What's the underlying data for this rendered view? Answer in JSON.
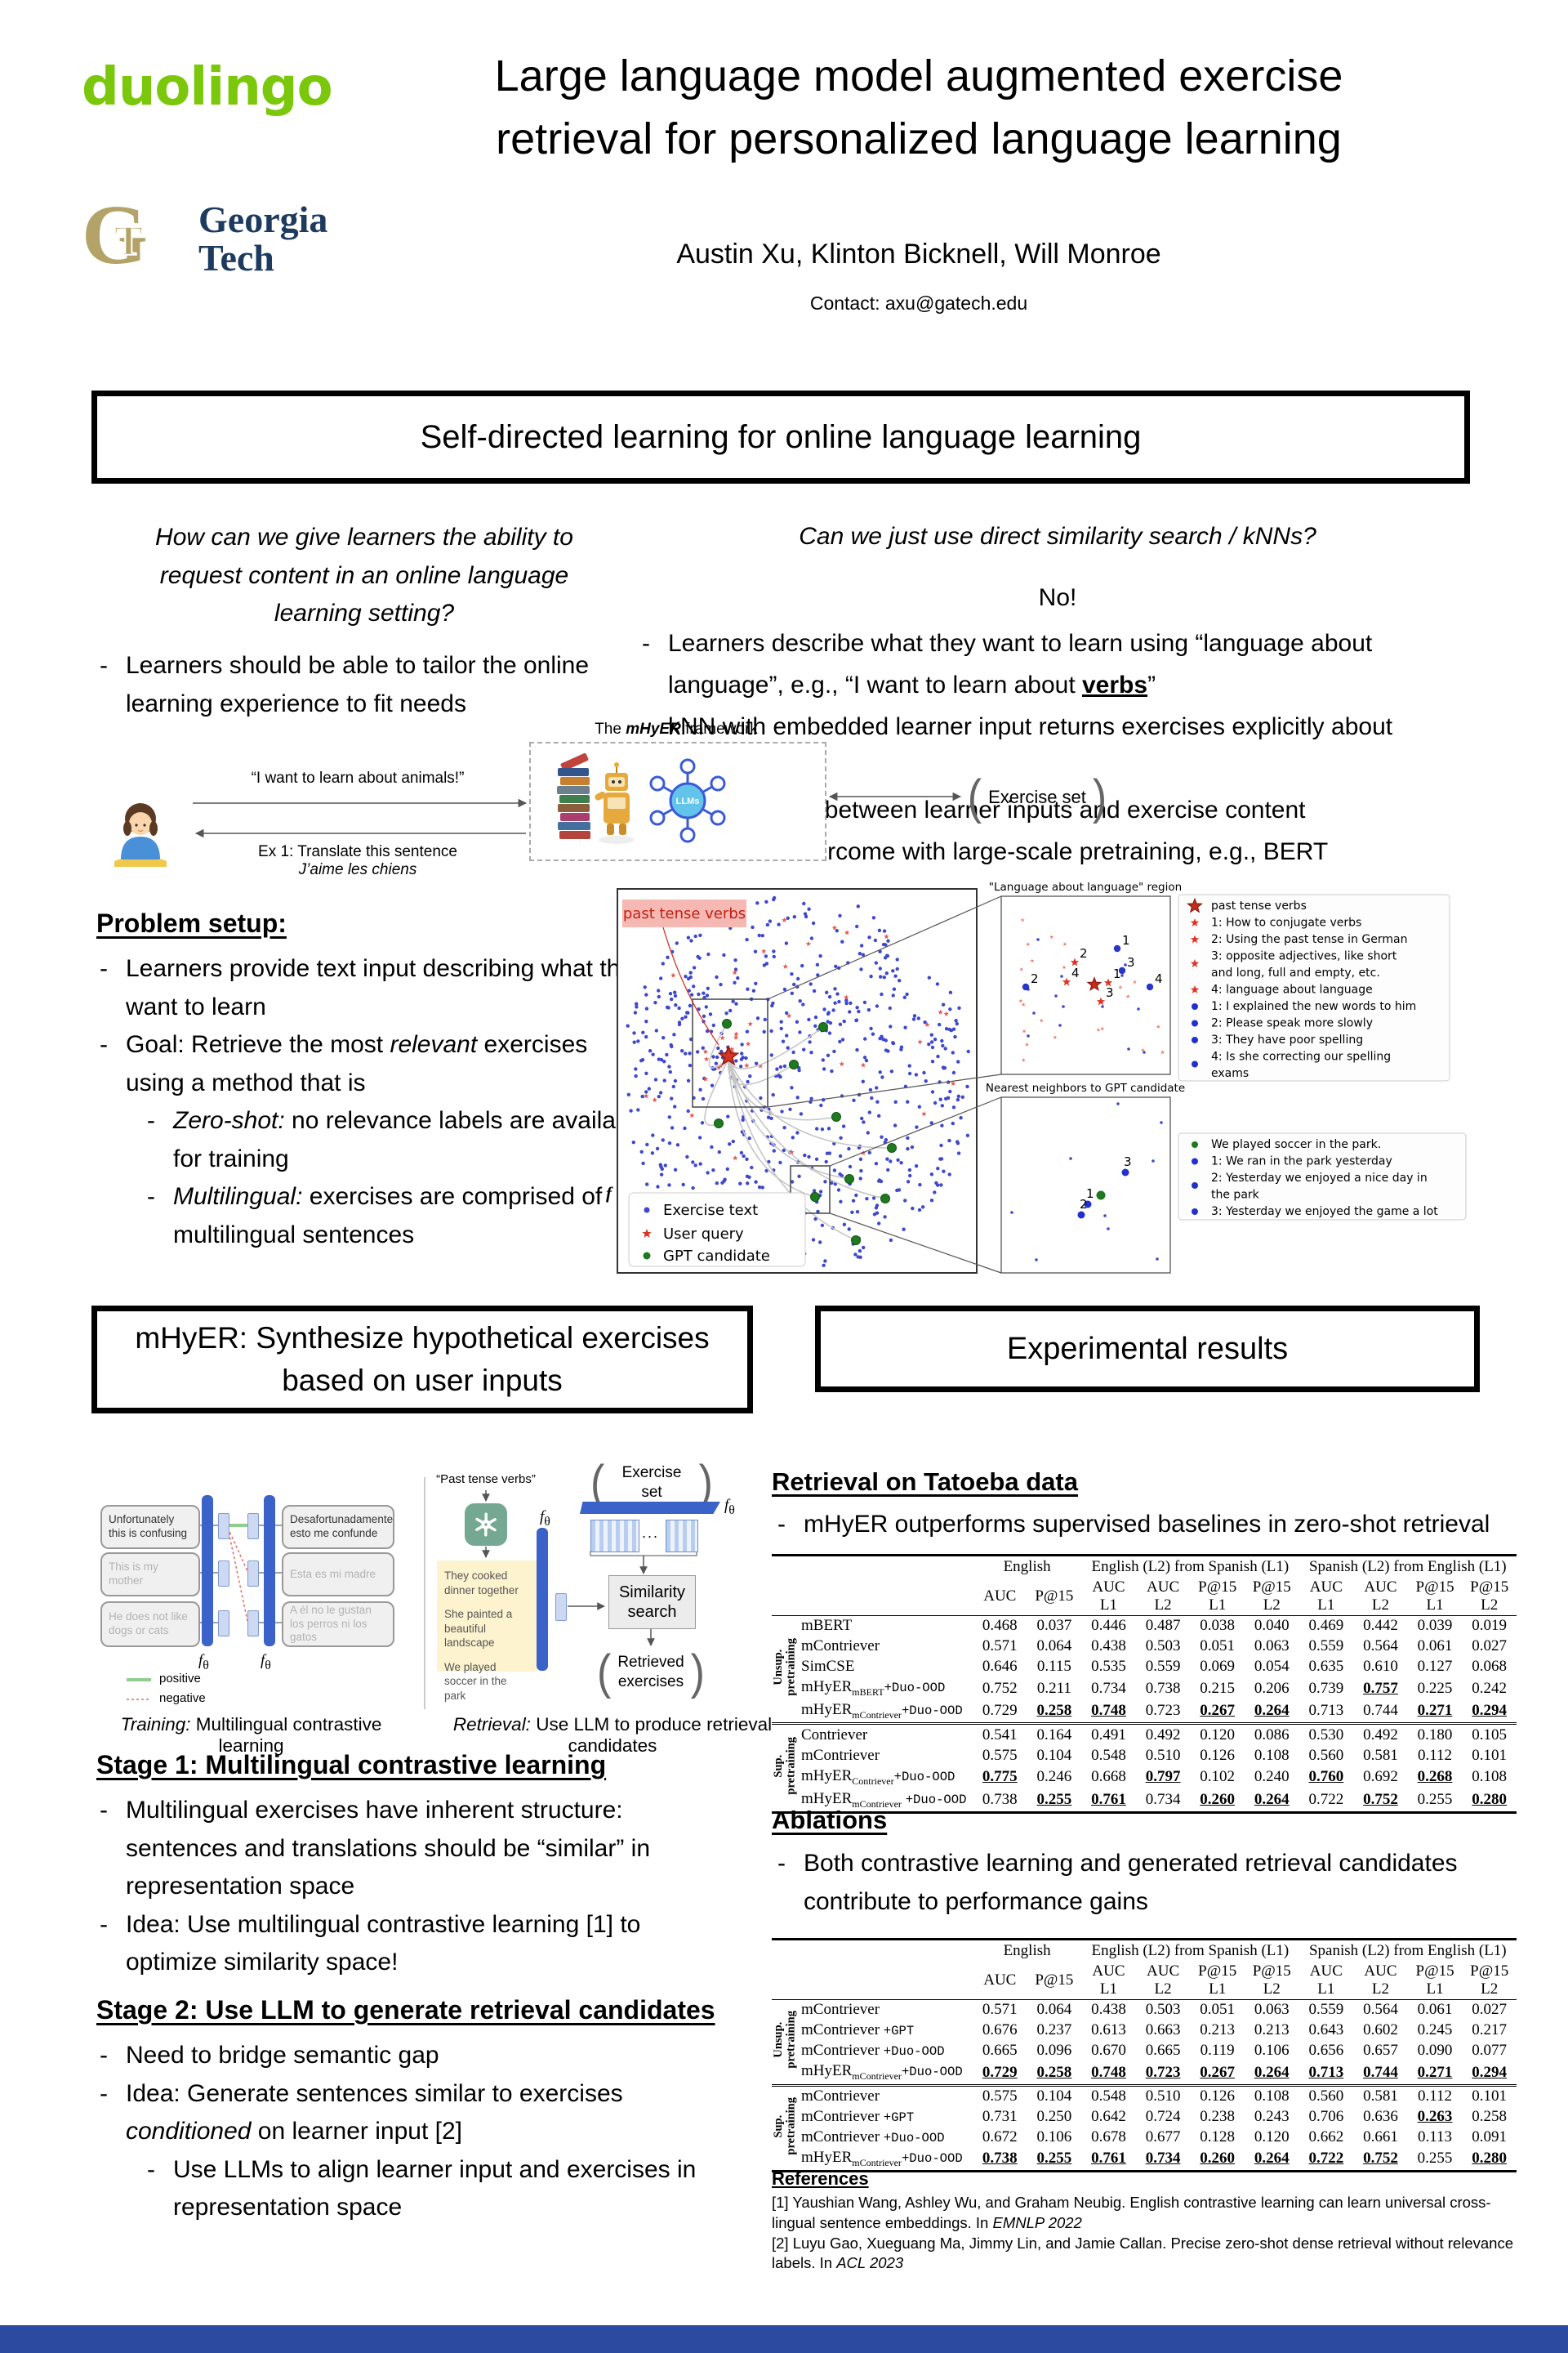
{
  "header": {
    "duolingo": "duolingo",
    "gt_g": "G",
    "gt_t": "T",
    "gt_line1": "Georgia",
    "gt_line2": "Tech",
    "title_line1": "Large language model augmented exercise",
    "title_line2": "retrieval for personalized language learning",
    "authors": "Austin Xu, Klinton Bicknell, Will Monroe",
    "contact": "Contact: axu@gatech.edu"
  },
  "section1": {
    "title": "Self-directed learning for online language learning",
    "left_question": "How can we give learners the ability to\nrequest content in an online language\nlearning setting?",
    "left_bullet": "Learners should be able to tailor the online learning experience to fit needs",
    "right_question": "Can we just use direct similarity search / kNNs?",
    "no_text": "No!",
    "right_bullets": [
      "Learners describe what they want to learn using “language about language”, e.g., “I want to learn about **verbs**”",
      "kNN with embedded learner input returns exercises explicitly about language!",
      "Semantic gap between learner inputs and exercise content",
      "Cannot be overcome with large-scale pretraining, e.g., BERT"
    ],
    "figure": {
      "speech_request": "“I want to learn about animals!”",
      "framework_pre": "The ",
      "framework_name": "mHyER",
      "framework_post": " framework",
      "llms_label": "LLMs",
      "exercise_set": "Exercise set",
      "reply_line1": "Ex 1: Translate this sentence",
      "reply_line2": "J’aime les chiens"
    }
  },
  "problem_setup": {
    "heading": "Problem setup:",
    "bullets": [
      "Learners provide text input describing what they want to learn",
      "Goal: Retrieve the most *relevant* exercises using a method that is",
      "*Zero-shot:* no relevance labels are available for training",
      "*Multilingual:* exercises are comprised of multilingual sentences"
    ]
  },
  "scatter": {
    "annotation": "past tense verbs",
    "stray_f": "f",
    "main_legend": [
      "Exercise text",
      "User query",
      "GPT candidate"
    ],
    "inset1_title": "\"Language about language\" region",
    "inset2_title": "Nearest neighbors to GPT candidate",
    "inset1_star_labels": [
      "1",
      "2",
      "3",
      "4"
    ],
    "inset1_dot_labels": [
      "1",
      "2",
      "3",
      "4"
    ],
    "inset2_dot_labels": [
      "1",
      "2",
      "3"
    ],
    "legend1": [
      {
        "marker": "star-big",
        "text": "past tense verbs"
      },
      {
        "marker": "star",
        "text": "1: How to conjugate verbs"
      },
      {
        "marker": "star",
        "text": "2: Using the past tense in German"
      },
      {
        "marker": "star",
        "text": "3: opposite adjectives, like short\nand long, full and empty, etc."
      },
      {
        "marker": "star",
        "text": "4: language about language"
      },
      {
        "marker": "dot",
        "text": "1: I explained the new words to him"
      },
      {
        "marker": "dot",
        "text": "2: Please speak more slowly"
      },
      {
        "marker": "dot",
        "text": "3: They have poor spelling"
      },
      {
        "marker": "dot",
        "text": "4: Is she correcting our spelling\nexams"
      }
    ],
    "legend2": [
      {
        "marker": "gdot",
        "text": "We played soccer in the park."
      },
      {
        "marker": "dot",
        "text": "1: We ran in the park yesterday"
      },
      {
        "marker": "dot",
        "text": "2: Yesterday we enjoyed a nice day in\nthe park"
      },
      {
        "marker": "dot",
        "text": "3: Yesterday we enjoyed the game a lot"
      }
    ]
  },
  "chart_data": {
    "type": "scatter",
    "title": "Embedding space of exercises, user queries and GPT candidates (t-SNE style cloud)",
    "series": [
      {
        "name": "Exercise text",
        "marker": "dot",
        "color": "#3f48cc",
        "approx_count": 650
      },
      {
        "name": "User query",
        "marker": "star",
        "color": "#d63324",
        "approx_count": 45
      },
      {
        "name": "GPT candidate",
        "marker": "large-dot",
        "color": "#1e7a1e",
        "approx_count": 10
      }
    ],
    "annotations": [
      "past tense verbs",
      "\"Language about language\" region",
      "Nearest neighbors to GPT candidate"
    ],
    "layout": {
      "grid": false,
      "axes": "hidden",
      "insets": 2,
      "legend_position": "bottom-left"
    }
  },
  "mhyer_box": {
    "title_line1": "mHyER: Synthesize hypothetical exercises",
    "title_line2": "based on user inputs"
  },
  "exp_box": {
    "title": "Experimental results"
  },
  "diagram": {
    "training": {
      "en_sentences": [
        "Unfortunately this is confusing",
        "This is my mother",
        "He does not like dogs or cats"
      ],
      "es_sentences": [
        "Desafortunadamente esto me confunde",
        "Esta es mi madre",
        "A él no le gustan los perros ni los gatos"
      ],
      "f_theta": "*f*~θ~",
      "legend_positive": "positive",
      "legend_negative": "negative",
      "caption": "*Training:* Multilingual contrastive learning"
    },
    "retrieval": {
      "query": "“Past tense verbs”",
      "gpt_sentences": [
        "They cooked dinner together",
        "She painted a beautiful landscape",
        "We played soccer in the park"
      ],
      "f_theta": "*f*~θ~",
      "exercise_set": "Exercise set",
      "dots": "...",
      "similarity": "Similarity\nsearch",
      "retrieved": "Retrieved\nexercises",
      "caption": "*Retrieval:* Use LLM to produce retrieval candidates"
    }
  },
  "stage1": {
    "heading": "Stage 1: Multilingual contrastive learning",
    "bullets": [
      "Multilingual exercises have inherent structure: sentences and translations should be “similar” in representation space",
      "Idea: Use multilingual contrastive learning [1] to optimize similarity space!"
    ]
  },
  "stage2": {
    "heading": "Stage 2: Use LLM to generate retrieval candidates",
    "bullets": [
      "Need to bridge semantic gap",
      "Idea: Generate sentences similar to exercises *conditioned* on learner input [2]",
      "Use LLMs to align learner input and exercises in representation space"
    ]
  },
  "results": {
    "heading": "Retrieval on Tatoeba data",
    "bullet": "mHyER outperforms supervised baselines in zero-shot retrieval"
  },
  "ablations": {
    "heading": "Ablations",
    "bullet": "Both contrastive learning and generated retrieval candidates contribute to performance gains"
  },
  "results_table": {
    "col_groups": [
      {
        "label": "English",
        "span": 2
      },
      {
        "label": "English (L2) from Spanish (L1)",
        "span": 4
      },
      {
        "label": "Spanish (L2) from English (L1)",
        "span": 4
      }
    ],
    "col_headers": [
      "AUC",
      "P@15",
      "AUC\nL1",
      "AUC\nL2",
      "P@15\nL1",
      "P@15\nL2",
      "AUC\nL1",
      "AUC\nL2",
      "P@15\nL1",
      "P@15\nL2"
    ],
    "groups": [
      {
        "label": "Unsup.\npretraining",
        "rows": [
          {
            "label": "mBERT",
            "cells": [
              "0.468",
              "0.037",
              "0.446",
              "0.487",
              "0.038",
              "0.040",
              "0.469",
              "0.442",
              "0.039",
              "0.019"
            ]
          },
          {
            "label": "mContriever",
            "cells": [
              "0.571",
              "0.064",
              "0.438",
              "0.503",
              "0.051",
              "0.063",
              "0.559",
              "0.564",
              "0.061",
              "0.027"
            ]
          },
          {
            "label": "SimCSE",
            "cells": [
              "0.646",
              "0.115",
              "0.535",
              "0.559",
              "0.069",
              "0.054",
              "0.635",
              "0.610",
              "0.127",
              "0.068"
            ]
          },
          {
            "label": "mHyER~mBERT~`+Duo-OOD`",
            "cells": [
              "0.752",
              "0.211",
              "0.734",
              "0.738",
              "0.215",
              "0.206",
              "0.739",
              "**0.757**",
              "0.225",
              "0.242"
            ]
          },
          {
            "label": "mHyER~mContriever~`+Duo-OOD`",
            "cells": [
              "0.729",
              "**0.258**",
              "**0.748**",
              "0.723",
              "**0.267**",
              "**0.264**",
              "0.713",
              "0.744",
              "**0.271**",
              "**0.294**"
            ]
          }
        ]
      },
      {
        "label": "Sup.\npretraining",
        "rows": [
          {
            "label": "Contriever",
            "cells": [
              "0.541",
              "0.164",
              "0.491",
              "0.492",
              "0.120",
              "0.086",
              "0.530",
              "0.492",
              "0.180",
              "0.105"
            ]
          },
          {
            "label": "mContriever",
            "cells": [
              "0.575",
              "0.104",
              "0.548",
              "0.510",
              "0.126",
              "0.108",
              "0.560",
              "0.581",
              "0.112",
              "0.101"
            ]
          },
          {
            "label": "mHyER~Contriever~`+Duo-OOD`",
            "cells": [
              "**0.775**",
              "0.246",
              "0.668",
              "**0.797**",
              "0.102",
              "0.240",
              "**0.760**",
              "0.692",
              "**0.268**",
              "0.108"
            ]
          },
          {
            "label": "mHyER~mContriever~ `+Duo-OOD`",
            "cells": [
              "0.738",
              "**0.255**",
              "**0.761**",
              "0.734",
              "**0.260**",
              "**0.264**",
              "0.722",
              "**0.752**",
              "0.255",
              "**0.280**"
            ]
          }
        ]
      }
    ]
  },
  "ablations_table": {
    "col_groups": [
      {
        "label": "English",
        "span": 2
      },
      {
        "label": "English (L2) from Spanish (L1)",
        "span": 4
      },
      {
        "label": "Spanish (L2) from English (L1)",
        "span": 4
      }
    ],
    "col_headers": [
      "AUC",
      "P@15",
      "AUC\nL1",
      "AUC\nL2",
      "P@15\nL1",
      "P@15\nL2",
      "AUC\nL1",
      "AUC\nL2",
      "P@15\nL1",
      "P@15\nL2"
    ],
    "groups": [
      {
        "label": "Unsup.\npretraining",
        "rows": [
          {
            "label": "mContriever",
            "cells": [
              "0.571",
              "0.064",
              "0.438",
              "0.503",
              "0.051",
              "0.063",
              "0.559",
              "0.564",
              "0.061",
              "0.027"
            ]
          },
          {
            "label": "mContriever `+GPT`",
            "cells": [
              "0.676",
              "0.237",
              "0.613",
              "0.663",
              "0.213",
              "0.213",
              "0.643",
              "0.602",
              "0.245",
              "0.217"
            ]
          },
          {
            "label": "mContriever `+Duo-OOD`",
            "cells": [
              "0.665",
              "0.096",
              "0.670",
              "0.665",
              "0.119",
              "0.106",
              "0.656",
              "0.657",
              "0.090",
              "0.077"
            ]
          },
          {
            "label": "mHyER~mContriever~`+Duo-OOD`",
            "cells": [
              "**0.729**",
              "**0.258**",
              "**0.748**",
              "**0.723**",
              "**0.267**",
              "**0.264**",
              "**0.713**",
              "**0.744**",
              "**0.271**",
              "**0.294**"
            ]
          }
        ]
      },
      {
        "label": "Sup.\npretraining",
        "rows": [
          {
            "label": "mContriever",
            "cells": [
              "0.575",
              "0.104",
              "0.548",
              "0.510",
              "0.126",
              "0.108",
              "0.560",
              "0.581",
              "0.112",
              "0.101"
            ]
          },
          {
            "label": "mContriever `+GPT`",
            "cells": [
              "0.731",
              "0.250",
              "0.642",
              "0.724",
              "0.238",
              "0.243",
              "0.706",
              "0.636",
              "**0.263**",
              "0.258"
            ]
          },
          {
            "label": "mContriever `+Duo-OOD`",
            "cells": [
              "0.672",
              "0.106",
              "0.678",
              "0.677",
              "0.128",
              "0.120",
              "0.662",
              "0.661",
              "0.113",
              "0.091"
            ]
          },
          {
            "label": "mHyER~mContriever~`+Duo-OOD`",
            "cells": [
              "**0.738**",
              "**0.255**",
              "**0.761**",
              "**0.734**",
              "**0.260**",
              "**0.264**",
              "**0.722**",
              "**0.752**",
              "0.255",
              "**0.280**"
            ]
          }
        ]
      }
    ]
  },
  "references": {
    "heading": "References",
    "items": [
      "[1] Yaushian Wang, Ashley Wu, and Graham Neubig. English contrastive learning can learn universal cross-lingual sentence embeddings. In *EMNLP 2022*",
      "[2] Luyu Gao, Xueguang Ma, Jimmy Lin, and Jamie Callan. Precise zero-shot dense retrieval without relevance labels. In *ACL 2023*"
    ]
  }
}
